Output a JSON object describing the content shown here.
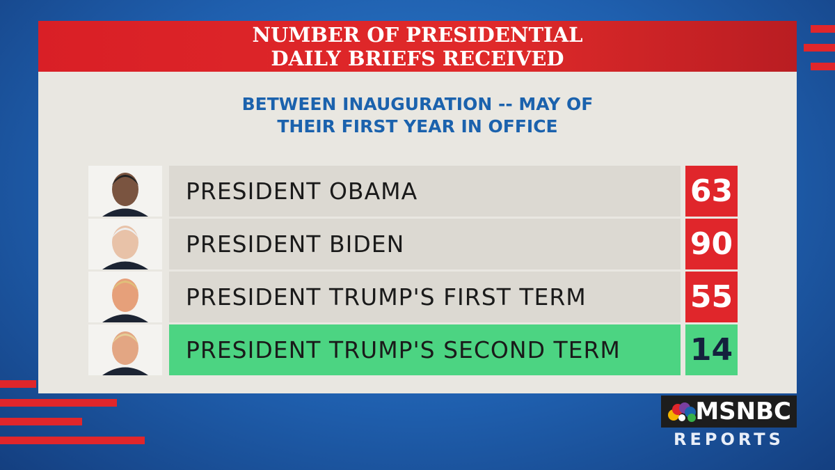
{
  "header": {
    "title_lines": [
      "NUMBER OF PRESIDENTIAL",
      "DAILY BRIEFS RECEIVED"
    ]
  },
  "subtitle_lines": [
    "BETWEEN INAUGURATION -- MAY OF",
    "THEIR FIRST YEAR IN OFFICE"
  ],
  "table": {
    "rows": [
      {
        "name": "PRESIDENT OBAMA",
        "value": 63,
        "highlight": false
      },
      {
        "name": "PRESIDENT BIDEN",
        "value": 90,
        "highlight": false
      },
      {
        "name": "PRESIDENT TRUMP'S FIRST TERM",
        "value": 55,
        "highlight": false
      },
      {
        "name": "PRESIDENT TRUMP'S SECOND TERM",
        "value": 14,
        "highlight": true
      }
    ]
  },
  "logo": {
    "brand": "MSNBC",
    "show": "REPORTS"
  }
}
